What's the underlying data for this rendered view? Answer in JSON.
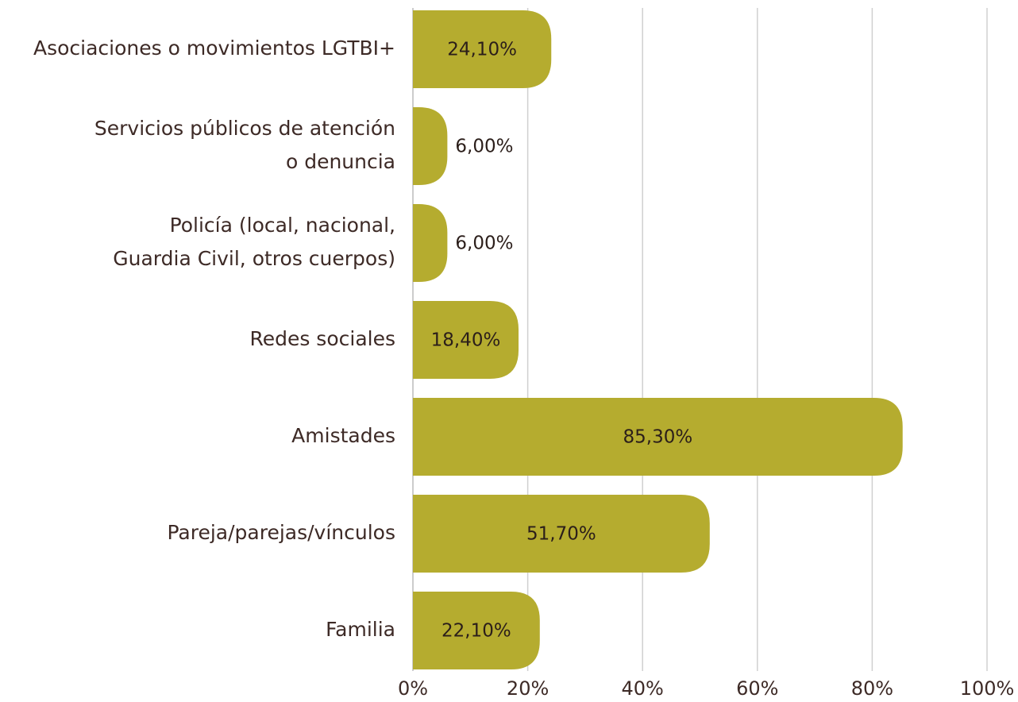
{
  "chart_data": {
    "type": "barh",
    "categories": [
      "Asociaciones o movimientos LGTBI+",
      "Servicios públicos de atención\no denuncia",
      "Policía (local, nacional,\nGuardia Civil, otros cuerpos)",
      "Redes sociales",
      "Amistades",
      "Pareja/parejas/vínculos",
      "Familia"
    ],
    "values": [
      24.1,
      6.0,
      6.0,
      18.4,
      85.3,
      51.7,
      22.1
    ],
    "value_labels": [
      "24,10%",
      "6,00%",
      "6,00%",
      "18,40%",
      "85,30%",
      "51,70%",
      "22,10%"
    ],
    "color": "#b5ac2f",
    "xlim": [
      0,
      100
    ],
    "xticks": [
      {
        "value": 0,
        "label": "0%"
      },
      {
        "value": 20,
        "label": "20%"
      },
      {
        "value": 40,
        "label": "40%"
      },
      {
        "value": 60,
        "label": "60%"
      },
      {
        "value": 80,
        "label": "80%"
      },
      {
        "value": 100,
        "label": "100%"
      }
    ],
    "grid": true
  }
}
